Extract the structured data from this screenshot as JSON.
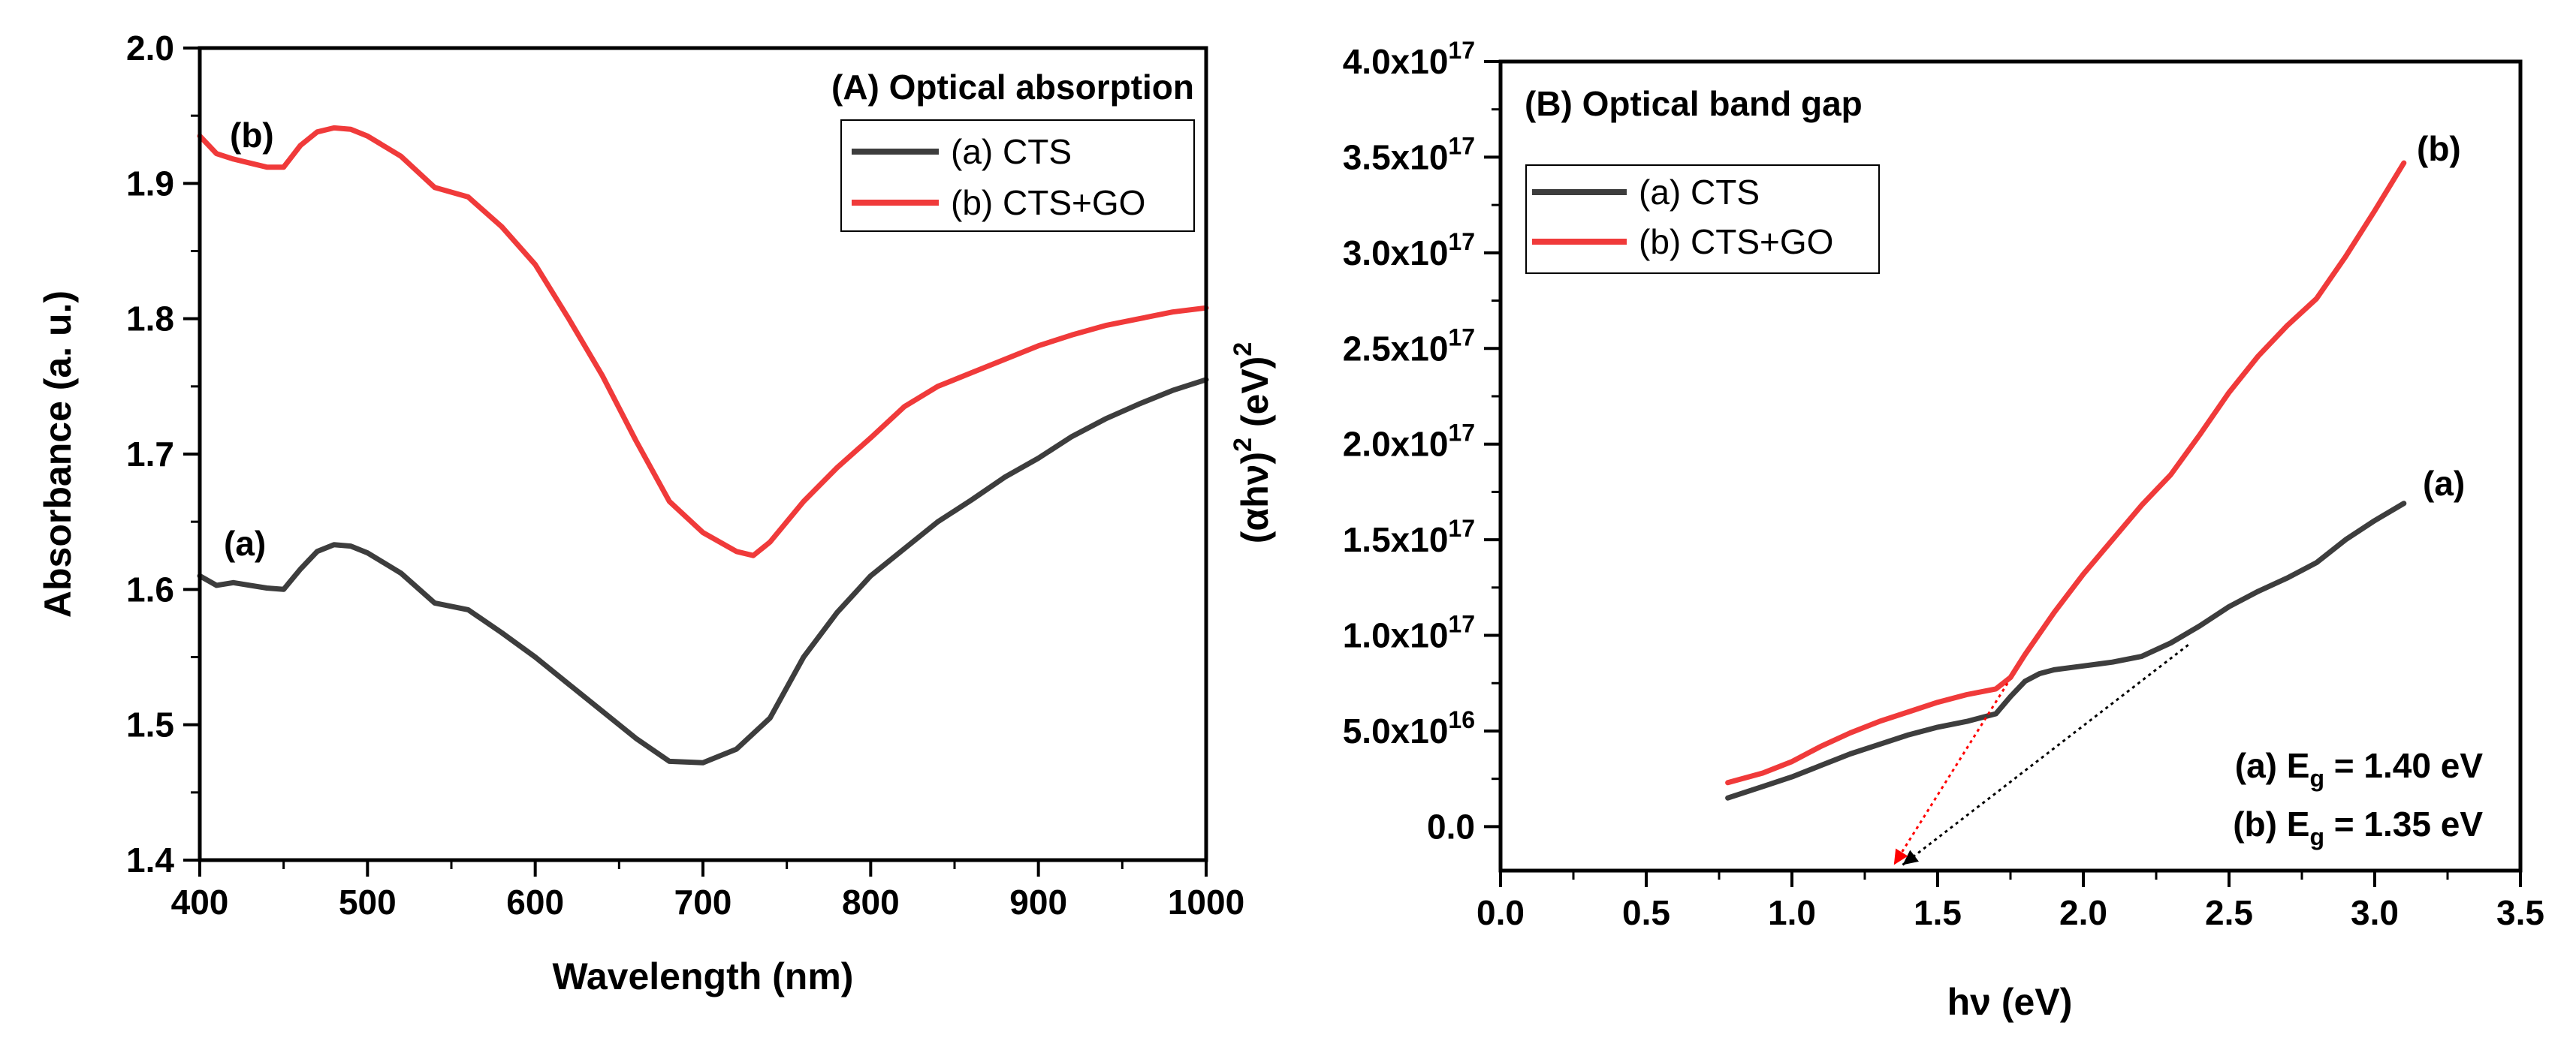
{
  "chart_data": [
    {
      "type": "line",
      "title": "(A) Optical absorption",
      "xlabel": "Wavelength (nm)",
      "ylabel": "Absorbance (a. u.)",
      "xlim": [
        400,
        1000
      ],
      "ylim": [
        1.4,
        2.0
      ],
      "xticks": [
        400,
        500,
        600,
        700,
        800,
        900,
        1000
      ],
      "yticks": [
        1.4,
        1.5,
        1.6,
        1.7,
        1.8,
        1.9,
        2.0
      ],
      "xtick_labels": [
        "400",
        "500",
        "600",
        "700",
        "800",
        "900",
        "1000"
      ],
      "ytick_labels": [
        "1.4",
        "1.5",
        "1.6",
        "1.7",
        "1.8",
        "1.9",
        "2.0"
      ],
      "legend_position": "top-right",
      "grid": false,
      "series": [
        {
          "name": "(a) CTS",
          "label": "(a)",
          "color": "#3d3d3d",
          "x": [
            400,
            410,
            420,
            430,
            440,
            450,
            460,
            470,
            480,
            490,
            500,
            520,
            540,
            560,
            580,
            600,
            620,
            640,
            660,
            680,
            700,
            720,
            740,
            760,
            780,
            800,
            820,
            840,
            860,
            880,
            900,
            920,
            940,
            960,
            980,
            1000
          ],
          "y": [
            1.61,
            1.603,
            1.605,
            1.603,
            1.601,
            1.6,
            1.615,
            1.628,
            1.633,
            1.632,
            1.627,
            1.612,
            1.59,
            1.585,
            1.568,
            1.55,
            1.53,
            1.51,
            1.49,
            1.473,
            1.472,
            1.482,
            1.505,
            1.55,
            1.583,
            1.61,
            1.63,
            1.65,
            1.666,
            1.683,
            1.697,
            1.713,
            1.726,
            1.737,
            1.747,
            1.755
          ]
        },
        {
          "name": "(b) CTS+GO",
          "label": "(b)",
          "color": "#f03a3a",
          "x": [
            400,
            410,
            420,
            430,
            440,
            450,
            460,
            470,
            480,
            490,
            500,
            520,
            540,
            560,
            580,
            600,
            620,
            640,
            660,
            680,
            700,
            720,
            730,
            740,
            760,
            780,
            800,
            820,
            840,
            860,
            880,
            900,
            920,
            940,
            960,
            980,
            1000
          ],
          "y": [
            1.935,
            1.922,
            1.918,
            1.915,
            1.912,
            1.912,
            1.928,
            1.938,
            1.941,
            1.94,
            1.935,
            1.92,
            1.897,
            1.89,
            1.868,
            1.84,
            1.8,
            1.758,
            1.71,
            1.665,
            1.642,
            1.628,
            1.625,
            1.635,
            1.665,
            1.69,
            1.712,
            1.735,
            1.75,
            1.76,
            1.77,
            1.78,
            1.788,
            1.795,
            1.8,
            1.805,
            1.808
          ]
        }
      ]
    },
    {
      "type": "line",
      "title": "(B) Optical band gap",
      "xlabel": "hν (eV)",
      "ylabel": "(αhν)² (eV)²",
      "xlim": [
        0.0,
        3.5
      ],
      "ylim": [
        -2.3e+16,
        4e+17
      ],
      "xticks": [
        0.0,
        0.5,
        1.0,
        1.5,
        2.0,
        2.5,
        3.0,
        3.5
      ],
      "yticks": [
        0.0,
        5e+16,
        1e+17,
        1.5e+17,
        2e+17,
        2.5e+17,
        3e+17,
        3.5e+17,
        4e+17
      ],
      "xtick_labels": [
        "0.0",
        "0.5",
        "1.0",
        "1.5",
        "2.0",
        "2.5",
        "3.0",
        "3.5"
      ],
      "ytick_labels": [
        {
          "mantissa": "0.0",
          "exp": ""
        },
        {
          "mantissa": "5.0x10",
          "exp": "16"
        },
        {
          "mantissa": "1.0x10",
          "exp": "17"
        },
        {
          "mantissa": "1.5x10",
          "exp": "17"
        },
        {
          "mantissa": "2.0x10",
          "exp": "17"
        },
        {
          "mantissa": "2.5x10",
          "exp": "17"
        },
        {
          "mantissa": "3.0x10",
          "exp": "17"
        },
        {
          "mantissa": "3.5x10",
          "exp": "17"
        },
        {
          "mantissa": "4.0x10",
          "exp": "17"
        }
      ],
      "legend_position": "top-left",
      "grid": false,
      "annotations": [
        {
          "label": "(a)",
          "name": "E",
          "sub": "g",
          "value": "= 1.40 eV"
        },
        {
          "label": "(b)",
          "name": "E",
          "sub": "g",
          "value": "= 1.35 eV"
        }
      ],
      "fit_lines": [
        {
          "series": "(a) CTS",
          "color": "#000000",
          "x": [
            2.36,
            1.38
          ],
          "y": [
            9.5e+16,
            -2e+16
          ]
        },
        {
          "series": "(b) CTS+GO",
          "color": "#ff0000",
          "x": [
            1.74,
            1.35
          ],
          "y": [
            7.5e+16,
            -2e+16
          ]
        }
      ],
      "series": [
        {
          "name": "(a) CTS",
          "label": "(a)",
          "color": "#3d3d3d",
          "x": [
            0.78,
            0.9,
            1.0,
            1.1,
            1.2,
            1.3,
            1.4,
            1.5,
            1.6,
            1.7,
            1.75,
            1.8,
            1.85,
            1.9,
            2.0,
            2.1,
            2.2,
            2.3,
            2.4,
            2.5,
            2.6,
            2.7,
            2.8,
            2.9,
            3.0,
            3.1
          ],
          "y": [
            1.5e+16,
            2.1e+16,
            2.6e+16,
            3.2e+16,
            3.8e+16,
            4.3e+16,
            4.8e+16,
            5.2e+16,
            5.5e+16,
            5.9e+16,
            6.8e+16,
            7.6e+16,
            8e+16,
            8.2e+16,
            8.4e+16,
            8.6e+16,
            8.9e+16,
            9.6e+16,
            1.05e+17,
            1.15e+17,
            1.23e+17,
            1.3e+17,
            1.38e+17,
            1.5e+17,
            1.6e+17,
            1.69e+17
          ]
        },
        {
          "name": "(b) CTS+GO",
          "label": "(b)",
          "color": "#f03a3a",
          "x": [
            0.78,
            0.9,
            1.0,
            1.1,
            1.2,
            1.3,
            1.4,
            1.5,
            1.6,
            1.7,
            1.75,
            1.8,
            1.9,
            2.0,
            2.1,
            2.2,
            2.3,
            2.4,
            2.5,
            2.6,
            2.7,
            2.8,
            2.9,
            3.0,
            3.1
          ],
          "y": [
            2.3e+16,
            2.8e+16,
            3.4e+16,
            4.2e+16,
            4.9e+16,
            5.5e+16,
            6e+16,
            6.5e+16,
            6.9e+16,
            7.2e+16,
            7.8e+16,
            9e+16,
            1.12e+17,
            1.32e+17,
            1.5e+17,
            1.68e+17,
            1.84e+17,
            2.05e+17,
            2.27e+17,
            2.46e+17,
            2.62e+17,
            2.76e+17,
            2.98e+17,
            3.22e+17,
            3.47e+17
          ]
        }
      ]
    }
  ]
}
